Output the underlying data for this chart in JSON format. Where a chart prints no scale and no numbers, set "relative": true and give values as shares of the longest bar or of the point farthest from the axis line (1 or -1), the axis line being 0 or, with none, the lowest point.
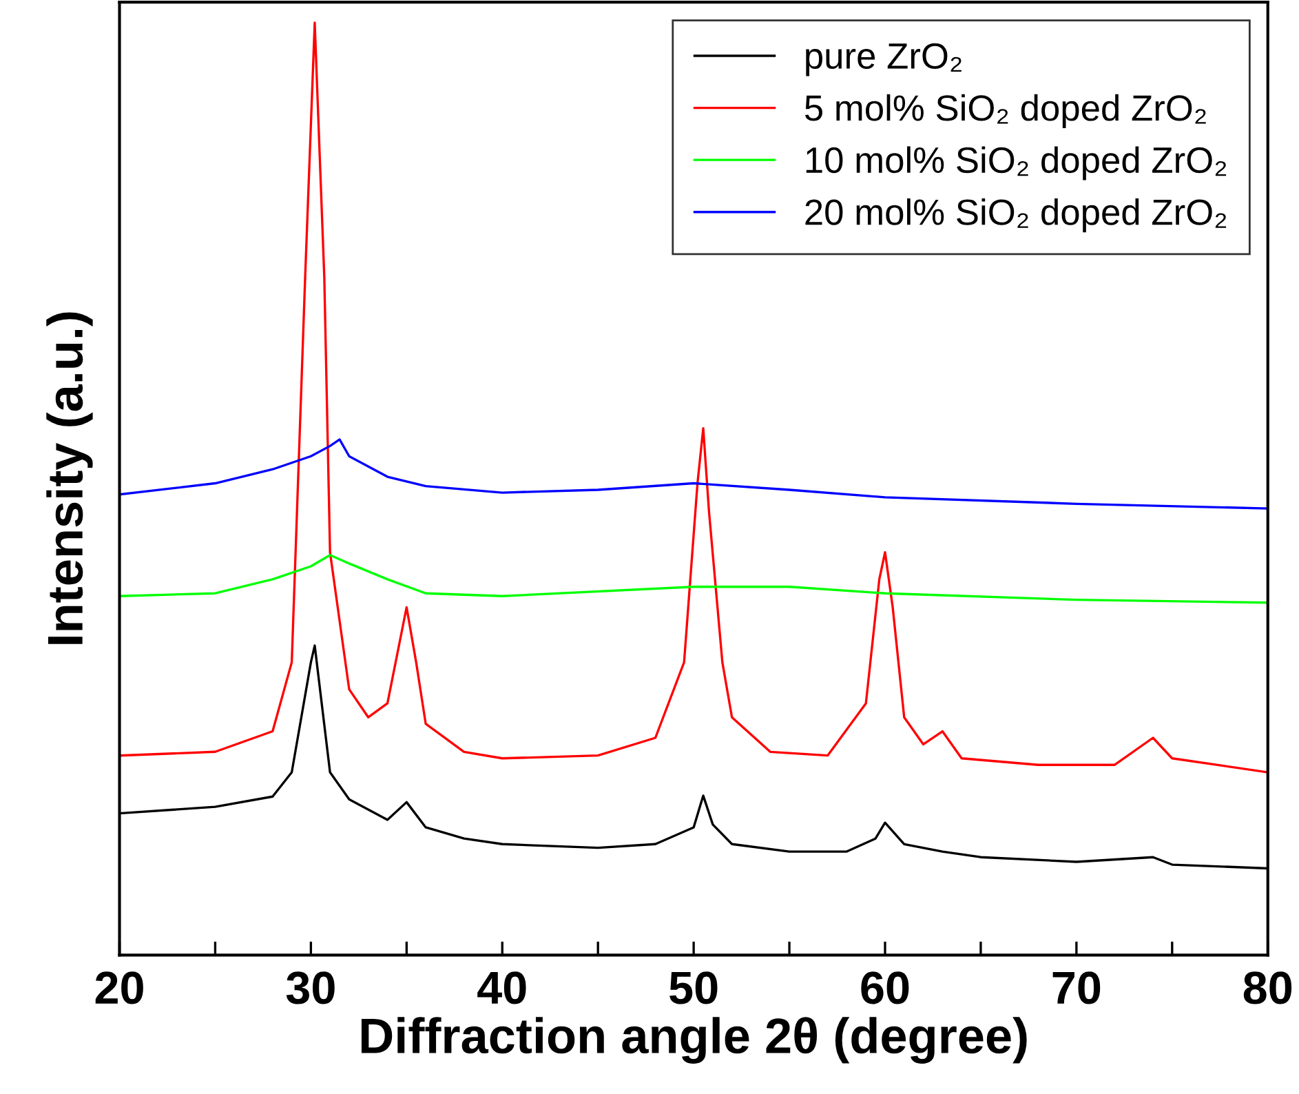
{
  "chart_data": {
    "type": "line",
    "relative": true,
    "xlabel": "Diffraction angle 2θ (degree)",
    "ylabel": "Intensity (a.u.)",
    "xlim": [
      20,
      80
    ],
    "xticks": [
      20,
      {
        "value": 25,
        "label": null
      },
      30,
      {
        "value": 35,
        "label": null
      },
      40,
      {
        "value": 45,
        "label": null
      },
      50,
      {
        "value": 55,
        "label": null
      },
      60,
      {
        "value": 65,
        "label": null
      },
      70,
      {
        "value": 75,
        "label": null
      },
      80
    ],
    "tick_labels": "x",
    "legend": "top right",
    "grid": false,
    "line_style": "solid",
    "marker": "none",
    "series": [
      {
        "name": "pure ZrO₂",
        "color": "#000000",
        "x": [
          20,
          25,
          28,
          29,
          30,
          30.2,
          31,
          32,
          34,
          35,
          36,
          38,
          40,
          45,
          48,
          50,
          50.5,
          51,
          52,
          55,
          58,
          59.5,
          60,
          61,
          63,
          65,
          70,
          74,
          75,
          80
        ],
        "values": [
          0.152,
          0.159,
          0.17,
          0.196,
          0.314,
          0.332,
          0.196,
          0.167,
          0.145,
          0.164,
          0.137,
          0.125,
          0.119,
          0.115,
          0.119,
          0.137,
          0.171,
          0.14,
          0.119,
          0.111,
          0.111,
          0.125,
          0.142,
          0.119,
          0.111,
          0.105,
          0.1,
          0.105,
          0.097,
          0.093
        ]
      },
      {
        "name": "5 mol% SiO₂ doped ZrO₂",
        "color": "#ff0000",
        "x": [
          20,
          25,
          28,
          29,
          29.7,
          30.2,
          30.7,
          31,
          32,
          33,
          34,
          35,
          35.5,
          36,
          38,
          40,
          45,
          48,
          49.5,
          50.2,
          50.5,
          50.8,
          51.5,
          52,
          54,
          57,
          59,
          59.7,
          60,
          60.4,
          61,
          62,
          63,
          64,
          68,
          72,
          74,
          75,
          80
        ],
        "values": [
          0.214,
          0.218,
          0.24,
          0.314,
          0.727,
          1,
          0.727,
          0.432,
          0.285,
          0.255,
          0.27,
          0.373,
          0.314,
          0.248,
          0.218,
          0.211,
          0.214,
          0.233,
          0.314,
          0.506,
          0.565,
          0.476,
          0.314,
          0.255,
          0.218,
          0.214,
          0.27,
          0.403,
          0.432,
          0.373,
          0.255,
          0.226,
          0.24,
          0.211,
          0.204,
          0.204,
          0.233,
          0.211,
          0.196
        ]
      },
      {
        "name": "10 mol% SiO₂ doped ZrO₂",
        "color": "#00ff00",
        "x": [
          20,
          25,
          28,
          30,
          31,
          32,
          34,
          36,
          40,
          50,
          55,
          60,
          70,
          80
        ],
        "values": [
          0.385,
          0.388,
          0.403,
          0.417,
          0.429,
          0.42,
          0.403,
          0.388,
          0.385,
          0.395,
          0.395,
          0.388,
          0.381,
          0.378
        ]
      },
      {
        "name": "20 mol% SiO₂ doped ZrO₂",
        "color": "#0000ff",
        "x": [
          20,
          25,
          28,
          30,
          31,
          31.5,
          32,
          34,
          36,
          40,
          45,
          50,
          55,
          60,
          70,
          80
        ],
        "values": [
          0.494,
          0.506,
          0.521,
          0.535,
          0.546,
          0.553,
          0.535,
          0.513,
          0.503,
          0.496,
          0.499,
          0.506,
          0.499,
          0.491,
          0.484,
          0.479
        ]
      }
    ]
  }
}
